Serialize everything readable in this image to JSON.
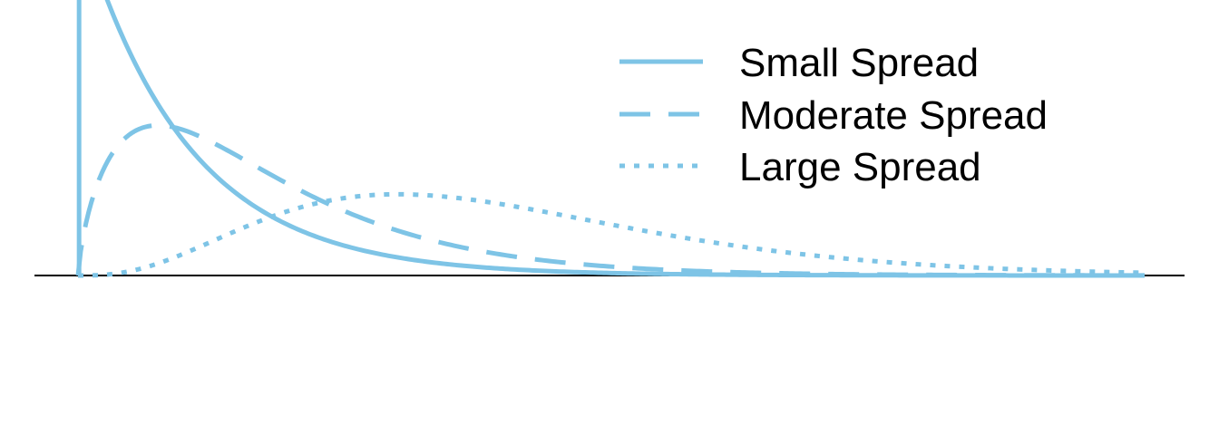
{
  "chart_data": {
    "type": "line",
    "title": "",
    "xlabel": "",
    "ylabel": "",
    "axes_visible": false,
    "baseline": true,
    "grid": false,
    "legend_position": "top-right",
    "line_color": "#7ec4e6",
    "baseline_color": "#000000",
    "xlim": [
      0,
      20
    ],
    "ylim": [
      0,
      0.36
    ],
    "series": [
      {
        "name": "Small Spread",
        "style": "solid",
        "distribution": "chi-square",
        "df": 2,
        "x_start": 0.02,
        "x_end": 20
      },
      {
        "name": "Moderate Spread",
        "style": "dashed",
        "distribution": "chi-square",
        "df": 3.5,
        "x_start": 0,
        "x_end": 20
      },
      {
        "name": "Large Spread",
        "style": "dotted",
        "distribution": "chi-square",
        "df": 8,
        "x_start": 0,
        "x_end": 20
      }
    ]
  }
}
